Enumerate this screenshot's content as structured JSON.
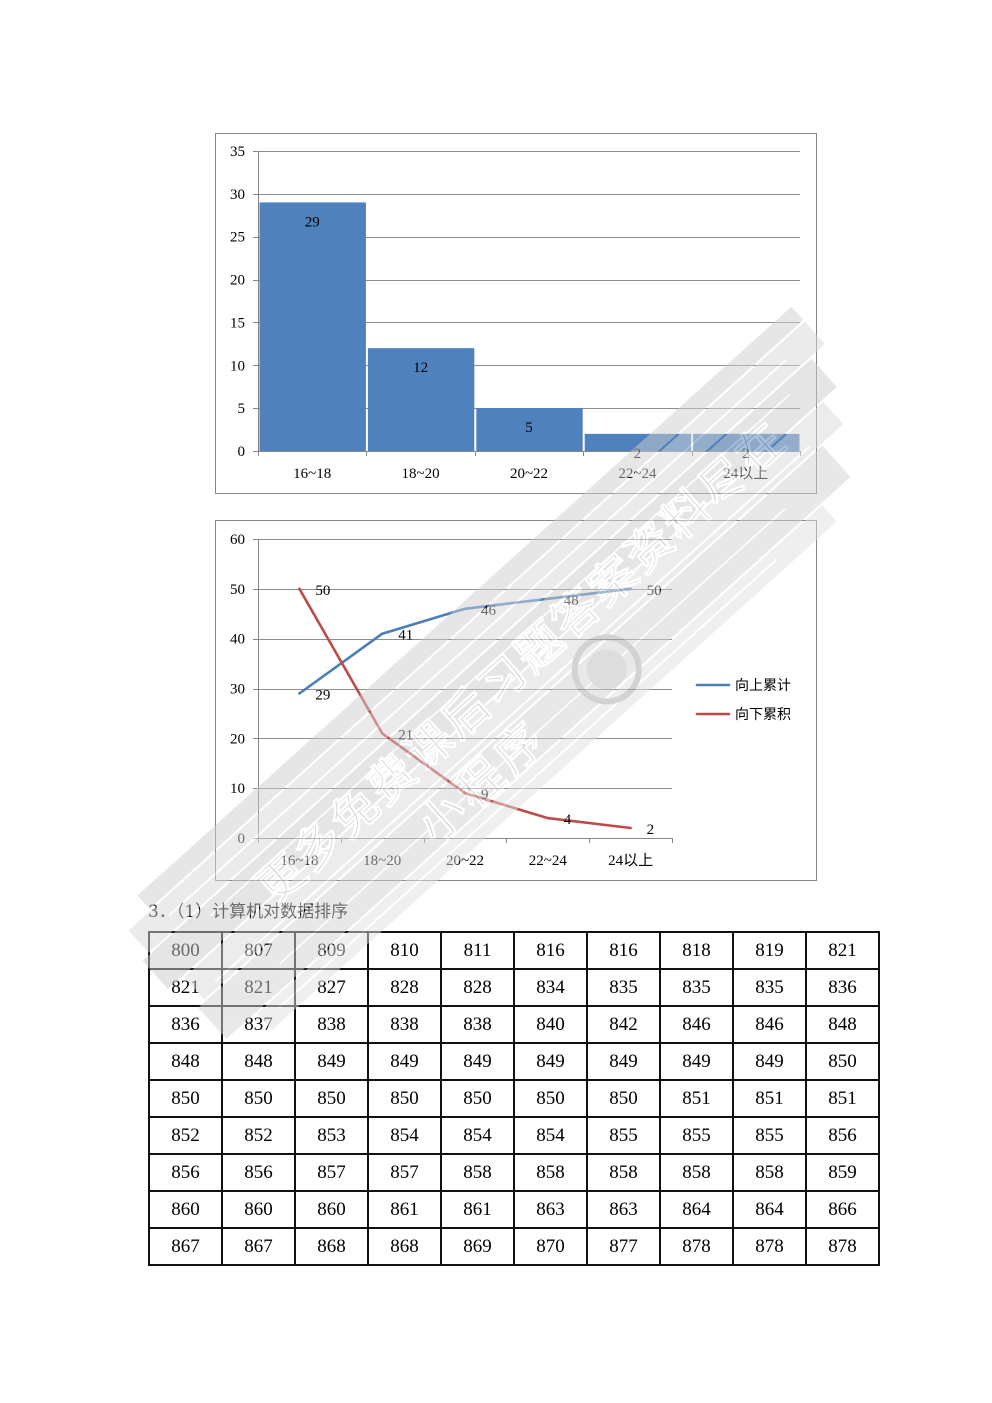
{
  "chart_data": [
    {
      "type": "bar",
      "categories": [
        "16~18",
        "18~20",
        "20~22",
        "22~24",
        "24以上"
      ],
      "values": [
        29,
        12,
        5,
        2,
        2
      ],
      "ylim": [
        0,
        35
      ],
      "yticks": [
        0,
        5,
        10,
        15,
        20,
        25,
        30,
        35
      ],
      "grid": true,
      "legend": "none",
      "data_labels": true,
      "color": "#4F81BD"
    },
    {
      "type": "line",
      "categories": [
        "16~18",
        "18~20",
        "20~22",
        "22~24",
        "24以上"
      ],
      "series": [
        {
          "name": "向上累计",
          "values": [
            29,
            41,
            46,
            48,
            50
          ],
          "color": "#4A7EBB"
        },
        {
          "name": "向下累积",
          "values": [
            50,
            21,
            9,
            4,
            2
          ],
          "color": "#BE4B48"
        }
      ],
      "ylim": [
        0,
        60
      ],
      "yticks": [
        0,
        10,
        20,
        30,
        40,
        50,
        60
      ],
      "grid": true,
      "legend": "right",
      "data_labels": true
    }
  ],
  "section": {
    "heading": "3．（1）计算机对数据排序"
  },
  "table": {
    "rows": [
      [
        800,
        807,
        809,
        810,
        811,
        816,
        816,
        818,
        819,
        821
      ],
      [
        821,
        821,
        827,
        828,
        828,
        834,
        835,
        835,
        835,
        836
      ],
      [
        836,
        837,
        838,
        838,
        838,
        840,
        842,
        846,
        846,
        848
      ],
      [
        848,
        848,
        849,
        849,
        849,
        849,
        849,
        849,
        849,
        850
      ],
      [
        850,
        850,
        850,
        850,
        850,
        850,
        850,
        851,
        851,
        851
      ],
      [
        852,
        852,
        853,
        854,
        854,
        854,
        855,
        855,
        855,
        856
      ],
      [
        856,
        856,
        857,
        857,
        858,
        858,
        858,
        858,
        858,
        859
      ],
      [
        860,
        860,
        860,
        861,
        861,
        863,
        863,
        864,
        864,
        866
      ],
      [
        867,
        867,
        868,
        868,
        869,
        870,
        877,
        878,
        878,
        878
      ]
    ]
  },
  "watermark": {
    "line1": "更多免费课后习题答案资料尽在",
    "line2": "小程序"
  }
}
